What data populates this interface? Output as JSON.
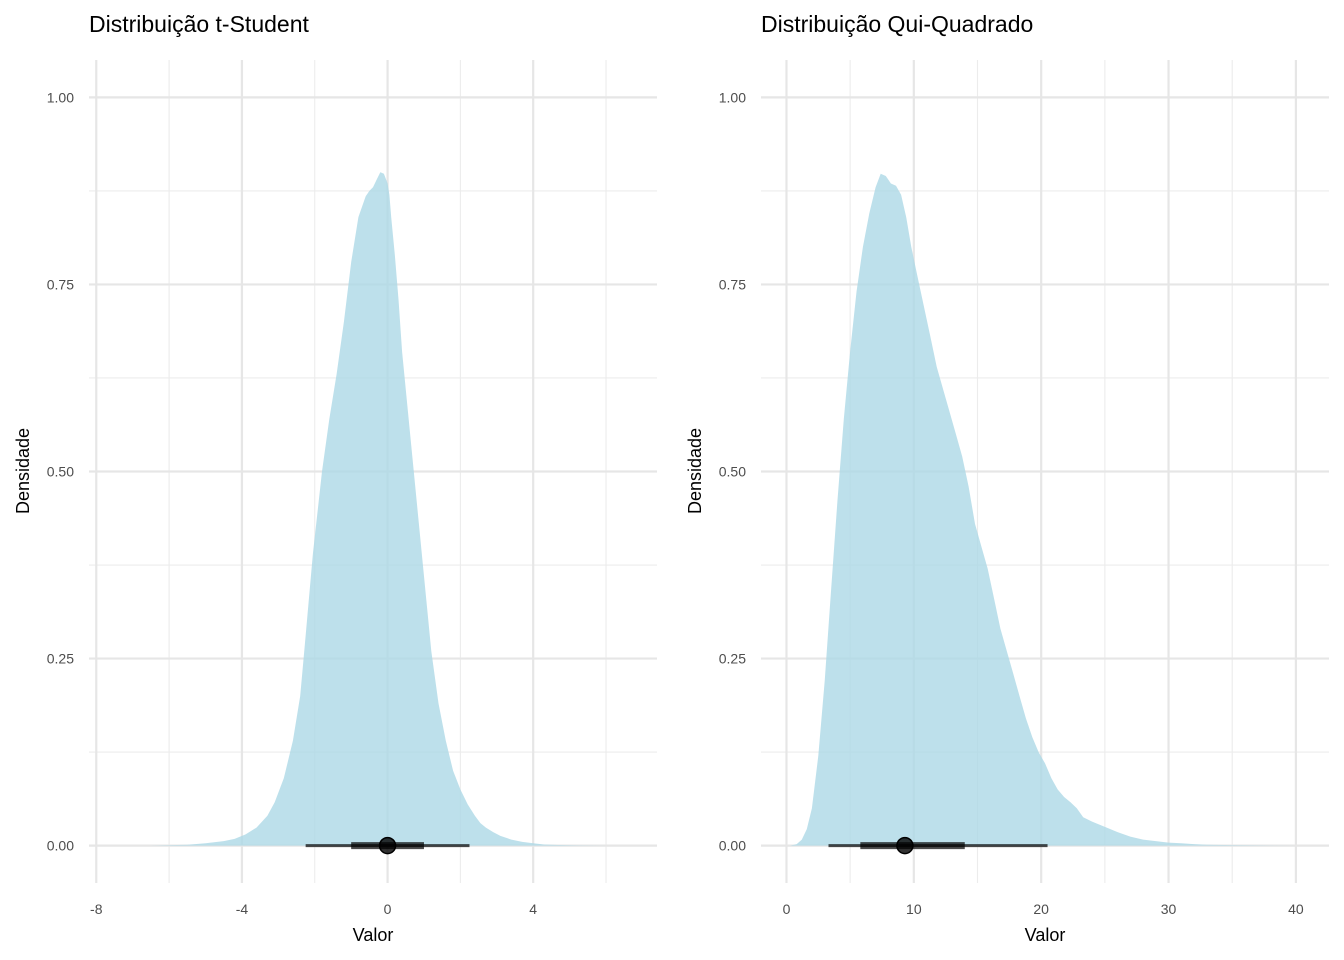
{
  "chart_data": [
    {
      "type": "area",
      "title": "Distribuição t-Student",
      "xlabel": "Valor",
      "ylabel": "Densidade",
      "xlim": [
        -8.2,
        7.4
      ],
      "ylim": [
        -0.05,
        1.05
      ],
      "x_ticks": [
        -8,
        -4,
        0,
        4
      ],
      "x_tick_labels": [
        "-8",
        "-4",
        "0",
        "4"
      ],
      "x_minor": [
        -6,
        -2,
        2,
        6
      ],
      "y_ticks": [
        0,
        0.25,
        0.5,
        0.75,
        1
      ],
      "y_tick_labels": [
        "0.00",
        "0.25",
        "0.50",
        "0.75",
        "1.00"
      ],
      "y_minor": [
        0.125,
        0.375,
        0.625,
        0.875
      ],
      "grid": true,
      "fill_color": "#add8e6",
      "density": {
        "x": [
          -6.5,
          -5.5,
          -5.0,
          -4.5,
          -4.2,
          -3.9,
          -3.6,
          -3.3,
          -3.1,
          -2.85,
          -2.6,
          -2.4,
          -2.25,
          -2.05,
          -1.8,
          -1.6,
          -1.4,
          -1.2,
          -1.0,
          -0.8,
          -0.6,
          -0.5,
          -0.4,
          -0.3,
          -0.2,
          -0.1,
          0.0,
          0.05,
          0.1,
          0.2,
          0.3,
          0.4,
          0.6,
          0.8,
          1.0,
          1.2,
          1.4,
          1.6,
          1.8,
          2.0,
          2.2,
          2.4,
          2.55,
          2.7,
          2.9,
          3.1,
          3.4,
          3.7,
          4.0,
          4.3,
          4.7,
          5.2,
          6.0
        ],
        "y": [
          0,
          0.001,
          0.003,
          0.006,
          0.009,
          0.015,
          0.024,
          0.04,
          0.058,
          0.09,
          0.14,
          0.2,
          0.28,
          0.39,
          0.5,
          0.57,
          0.63,
          0.7,
          0.78,
          0.84,
          0.868,
          0.875,
          0.88,
          0.89,
          0.9,
          0.898,
          0.885,
          0.87,
          0.84,
          0.79,
          0.73,
          0.66,
          0.56,
          0.46,
          0.36,
          0.26,
          0.19,
          0.14,
          0.1,
          0.075,
          0.055,
          0.04,
          0.03,
          0.024,
          0.018,
          0.013,
          0.008,
          0.005,
          0.003,
          0.0015,
          0.0008,
          0.0003,
          0
        ]
      },
      "median": 0.0,
      "interval_inner": [
        -1.0,
        1.0
      ],
      "interval_outer": [
        -2.25,
        2.25
      ]
    },
    {
      "type": "area",
      "title": "Distribuição Qui-Quadrado",
      "xlabel": "Valor",
      "ylabel": "Densidade",
      "xlim": [
        -2.0,
        42.6
      ],
      "ylim": [
        -0.05,
        1.05
      ],
      "x_ticks": [
        0,
        10,
        20,
        30,
        40
      ],
      "x_tick_labels": [
        "0",
        "10",
        "20",
        "30",
        "40"
      ],
      "x_minor": [
        5,
        15,
        25,
        35
      ],
      "y_ticks": [
        0,
        0.25,
        0.5,
        0.75,
        1
      ],
      "y_tick_labels": [
        "0.00",
        "0.25",
        "0.50",
        "0.75",
        "1.00"
      ],
      "y_minor": [
        0.125,
        0.375,
        0.625,
        0.875
      ],
      "grid": true,
      "fill_color": "#add8e6",
      "density": {
        "x": [
          0.3,
          0.8,
          1.2,
          1.6,
          2.0,
          2.5,
          3.0,
          3.5,
          4.0,
          4.5,
          5.0,
          5.5,
          6.0,
          6.5,
          7.0,
          7.4,
          7.8,
          8.2,
          8.6,
          9.0,
          9.4,
          9.8,
          10.3,
          10.8,
          11.3,
          11.8,
          12.3,
          12.8,
          13.3,
          13.8,
          14.3,
          14.8,
          15.3,
          15.8,
          16.3,
          16.8,
          17.3,
          17.8,
          18.3,
          18.8,
          19.3,
          19.8,
          20.3,
          20.8,
          21.3,
          21.8,
          22.3,
          22.8,
          23.3,
          24.0,
          25.0,
          26.0,
          27.0,
          28.0,
          29.0,
          30.0,
          31.0,
          32.0,
          33.0,
          35.0,
          37.0,
          40.0
        ],
        "y": [
          0,
          0.002,
          0.008,
          0.022,
          0.05,
          0.12,
          0.22,
          0.34,
          0.46,
          0.57,
          0.66,
          0.74,
          0.8,
          0.845,
          0.88,
          0.898,
          0.895,
          0.885,
          0.882,
          0.87,
          0.84,
          0.8,
          0.76,
          0.72,
          0.68,
          0.64,
          0.61,
          0.58,
          0.55,
          0.52,
          0.48,
          0.43,
          0.4,
          0.37,
          0.33,
          0.29,
          0.26,
          0.23,
          0.2,
          0.17,
          0.145,
          0.125,
          0.11,
          0.09,
          0.075,
          0.065,
          0.058,
          0.05,
          0.038,
          0.032,
          0.025,
          0.018,
          0.012,
          0.008,
          0.006,
          0.004,
          0.003,
          0.002,
          0.0012,
          0.0006,
          0.0002,
          0
        ]
      },
      "median": 9.3,
      "interval_inner": [
        5.8,
        14.0
      ],
      "interval_outer": [
        3.3,
        20.5
      ]
    }
  ]
}
